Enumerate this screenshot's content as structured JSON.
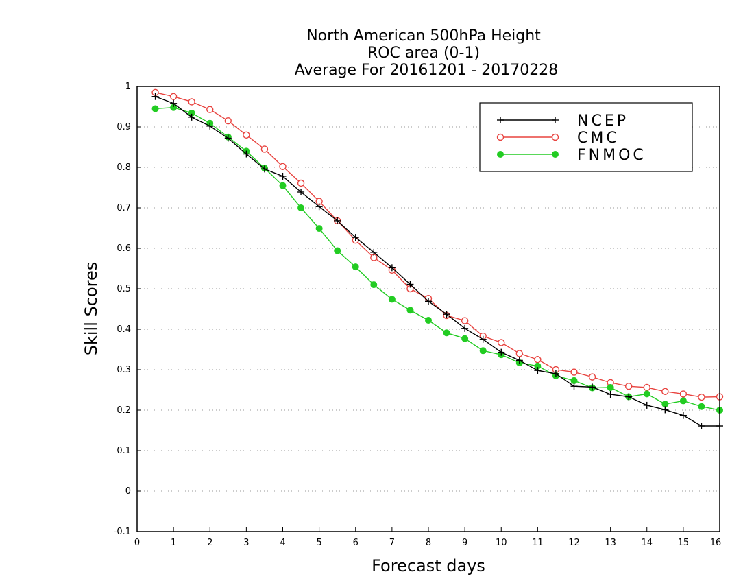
{
  "chart_data": {
    "type": "line",
    "title_lines": [
      "North American 500hPa Height",
      "ROC area (0-1)",
      "Average For 20161201 - 20170228"
    ],
    "xlabel": "Forecast days",
    "ylabel": "Skill Scores",
    "xlim": [
      0,
      16
    ],
    "ylim": [
      -0.1,
      1
    ],
    "xticks": [
      0,
      1,
      2,
      3,
      4,
      5,
      6,
      7,
      8,
      9,
      10,
      11,
      12,
      13,
      14,
      15,
      16
    ],
    "xtick_labels": [
      "0",
      "1",
      "2",
      "3",
      "4",
      "5",
      "6",
      "7",
      "8",
      "9",
      "10",
      "11",
      "12",
      "13",
      "14",
      "15",
      "16"
    ],
    "yticks": [
      -0.1,
      0,
      0.1,
      0.2,
      0.3,
      0.4,
      0.5,
      0.6,
      0.7,
      0.8,
      0.9,
      1
    ],
    "ytick_labels": [
      "-0.1",
      "0",
      "0.1",
      "0.2",
      "0.3",
      "0.4",
      "0.5",
      "0.6",
      "0.7",
      "0.8",
      "0.9",
      "1"
    ],
    "grid": "horizontal dotted",
    "legend_position": "top-right",
    "x": [
      0.5,
      1,
      1.5,
      2,
      2.5,
      3,
      3.5,
      4,
      4.5,
      5,
      5.5,
      6,
      6.5,
      7,
      7.5,
      8,
      8.5,
      9,
      9.5,
      10,
      10.5,
      11,
      11.5,
      12,
      12.5,
      13,
      13.5,
      14,
      14.5,
      15,
      15.5,
      16
    ],
    "series": [
      {
        "name": "NCEP",
        "color": "#000000",
        "marker": "plus",
        "values": [
          0.975,
          0.958,
          0.924,
          0.902,
          0.872,
          0.833,
          0.796,
          0.778,
          0.739,
          0.703,
          0.668,
          0.627,
          0.59,
          0.552,
          0.511,
          0.469,
          0.437,
          0.402,
          0.375,
          0.343,
          0.323,
          0.298,
          0.29,
          0.259,
          0.257,
          0.239,
          0.233,
          0.212,
          0.201,
          0.187,
          0.161,
          0.161
        ]
      },
      {
        "name": "CMC",
        "color": "#e8433f",
        "marker": "open-circle",
        "values": [
          0.985,
          0.975,
          0.962,
          0.943,
          0.915,
          0.88,
          0.845,
          0.802,
          0.761,
          0.716,
          0.668,
          0.62,
          0.577,
          0.546,
          0.5,
          0.476,
          0.434,
          0.421,
          0.383,
          0.367,
          0.34,
          0.325,
          0.3,
          0.294,
          0.282,
          0.268,
          0.259,
          0.256,
          0.246,
          0.24,
          0.232,
          0.233
        ]
      },
      {
        "name": "FNMOC",
        "color": "#22cc22",
        "marker": "filled-circle",
        "values": [
          0.945,
          0.948,
          0.934,
          0.909,
          0.875,
          0.84,
          0.798,
          0.755,
          0.7,
          0.649,
          0.594,
          0.554,
          0.51,
          0.474,
          0.447,
          0.422,
          0.391,
          0.377,
          0.347,
          0.337,
          0.317,
          0.309,
          0.285,
          0.273,
          0.255,
          0.256,
          0.233,
          0.24,
          0.215,
          0.223,
          0.209,
          0.2
        ]
      }
    ]
  }
}
